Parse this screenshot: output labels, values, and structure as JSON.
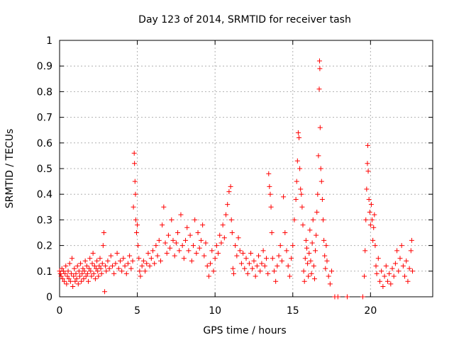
{
  "chart_data": {
    "type": "scatter",
    "title": "Day 123 of 2014, SRMTID for receiver tash",
    "xlabel": "GPS time / hours",
    "ylabel": "SRMTID / TECUs",
    "xlim": [
      0,
      24
    ],
    "ylim": [
      0,
      1
    ],
    "xticks": [
      0,
      5,
      10,
      15,
      20
    ],
    "xtick_labels": [
      "0",
      "5",
      "10",
      "15",
      "20"
    ],
    "yticks": [
      0,
      0.1,
      0.2,
      0.3,
      0.4,
      0.5,
      0.6,
      0.7,
      0.8,
      0.9,
      1
    ],
    "ytick_labels": [
      "0",
      "0.1",
      "0.2",
      "0.3",
      "0.4",
      "0.5",
      "0.6",
      "0.7",
      "0.8",
      "0.9",
      "1"
    ],
    "grid": true,
    "marker": "+",
    "color": "#ff0000",
    "series": [
      {
        "name": "SRMTID",
        "points": [
          [
            0.0,
            0.1
          ],
          [
            0.05,
            0.09
          ],
          [
            0.1,
            0.08
          ],
          [
            0.15,
            0.11
          ],
          [
            0.2,
            0.07
          ],
          [
            0.25,
            0.1
          ],
          [
            0.3,
            0.06
          ],
          [
            0.35,
            0.09
          ],
          [
            0.4,
            0.12
          ],
          [
            0.45,
            0.05
          ],
          [
            0.5,
            0.08
          ],
          [
            0.55,
            0.1
          ],
          [
            0.6,
            0.07
          ],
          [
            0.65,
            0.13
          ],
          [
            0.7,
            0.06
          ],
          [
            0.75,
            0.09
          ],
          [
            0.8,
            0.15
          ],
          [
            0.85,
            0.04
          ],
          [
            0.9,
            0.08
          ],
          [
            0.95,
            0.11
          ],
          [
            1.0,
            0.06
          ],
          [
            1.05,
            0.09
          ],
          [
            1.1,
            0.07
          ],
          [
            1.15,
            0.12
          ],
          [
            1.2,
            0.05
          ],
          [
            1.25,
            0.1
          ],
          [
            1.3,
            0.08
          ],
          [
            1.35,
            0.13
          ],
          [
            1.4,
            0.06
          ],
          [
            1.45,
            0.09
          ],
          [
            1.5,
            0.11
          ],
          [
            1.55,
            0.07
          ],
          [
            1.6,
            0.1
          ],
          [
            1.65,
            0.14
          ],
          [
            1.7,
            0.08
          ],
          [
            1.75,
            0.12
          ],
          [
            1.8,
            0.09
          ],
          [
            1.85,
            0.06
          ],
          [
            1.9,
            0.11
          ],
          [
            1.95,
            0.15
          ],
          [
            2.0,
            0.1
          ],
          [
            2.05,
            0.08
          ],
          [
            2.1,
            0.13
          ],
          [
            2.15,
            0.17
          ],
          [
            2.2,
            0.09
          ],
          [
            2.25,
            0.12
          ],
          [
            2.3,
            0.07
          ],
          [
            2.35,
            0.11
          ],
          [
            2.4,
            0.14
          ],
          [
            2.45,
            0.1
          ],
          [
            2.5,
            0.08
          ],
          [
            2.55,
            0.12
          ],
          [
            2.6,
            0.15
          ],
          [
            2.65,
            0.11
          ],
          [
            2.7,
            0.09
          ],
          [
            2.75,
            0.13
          ],
          [
            2.8,
            0.2
          ],
          [
            2.85,
            0.25
          ],
          [
            2.9,
            0.02
          ],
          [
            2.95,
            0.12
          ],
          [
            3.0,
            0.1
          ],
          [
            3.1,
            0.14
          ],
          [
            3.2,
            0.11
          ],
          [
            3.3,
            0.16
          ],
          [
            3.4,
            0.12
          ],
          [
            3.5,
            0.09
          ],
          [
            3.6,
            0.13
          ],
          [
            3.7,
            0.17
          ],
          [
            3.8,
            0.11
          ],
          [
            3.9,
            0.14
          ],
          [
            4.0,
            0.1
          ],
          [
            4.1,
            0.15
          ],
          [
            4.2,
            0.12
          ],
          [
            4.3,
            0.09
          ],
          [
            4.4,
            0.13
          ],
          [
            4.5,
            0.16
          ],
          [
            4.6,
            0.11
          ],
          [
            4.7,
            0.14
          ],
          [
            4.75,
            0.35
          ],
          [
            4.8,
            0.56
          ],
          [
            4.82,
            0.52
          ],
          [
            4.85,
            0.45
          ],
          [
            4.88,
            0.4
          ],
          [
            4.9,
            0.3
          ],
          [
            4.95,
            0.25
          ],
          [
            5.0,
            0.28
          ],
          [
            5.05,
            0.2
          ],
          [
            5.1,
            0.15
          ],
          [
            5.15,
            0.1
          ],
          [
            5.2,
            0.08
          ],
          [
            5.3,
            0.12
          ],
          [
            5.4,
            0.14
          ],
          [
            5.5,
            0.1
          ],
          [
            5.6,
            0.13
          ],
          [
            5.7,
            0.17
          ],
          [
            5.8,
            0.12
          ],
          [
            5.9,
            0.15
          ],
          [
            6.0,
            0.18
          ],
          [
            6.1,
            0.13
          ],
          [
            6.2,
            0.2
          ],
          [
            6.3,
            0.16
          ],
          [
            6.4,
            0.22
          ],
          [
            6.5,
            0.14
          ],
          [
            6.6,
            0.28
          ],
          [
            6.7,
            0.35
          ],
          [
            6.8,
            0.21
          ],
          [
            6.9,
            0.17
          ],
          [
            7.0,
            0.24
          ],
          [
            7.1,
            0.19
          ],
          [
            7.2,
            0.3
          ],
          [
            7.3,
            0.22
          ],
          [
            7.4,
            0.16
          ],
          [
            7.5,
            0.21
          ],
          [
            7.6,
            0.25
          ],
          [
            7.7,
            0.18
          ],
          [
            7.8,
            0.32
          ],
          [
            7.9,
            0.2
          ],
          [
            8.0,
            0.15
          ],
          [
            8.1,
            0.22
          ],
          [
            8.2,
            0.27
          ],
          [
            8.3,
            0.18
          ],
          [
            8.4,
            0.24
          ],
          [
            8.5,
            0.14
          ],
          [
            8.6,
            0.2
          ],
          [
            8.7,
            0.3
          ],
          [
            8.8,
            0.17
          ],
          [
            8.9,
            0.25
          ],
          [
            9.0,
            0.19
          ],
          [
            9.1,
            0.22
          ],
          [
            9.2,
            0.28
          ],
          [
            9.3,
            0.16
          ],
          [
            9.4,
            0.21
          ],
          [
            9.5,
            0.12
          ],
          [
            9.6,
            0.08
          ],
          [
            9.7,
            0.13
          ],
          [
            9.8,
            0.18
          ],
          [
            9.9,
            0.1
          ],
          [
            10.0,
            0.15
          ],
          [
            10.1,
            0.2
          ],
          [
            10.2,
            0.17
          ],
          [
            10.3,
            0.24
          ],
          [
            10.4,
            0.21
          ],
          [
            10.5,
            0.28
          ],
          [
            10.6,
            0.23
          ],
          [
            10.7,
            0.32
          ],
          [
            10.8,
            0.36
          ],
          [
            10.9,
            0.41
          ],
          [
            11.0,
            0.43
          ],
          [
            11.05,
            0.3
          ],
          [
            11.1,
            0.25
          ],
          [
            11.15,
            0.11
          ],
          [
            11.2,
            0.09
          ],
          [
            11.3,
            0.2
          ],
          [
            11.4,
            0.16
          ],
          [
            11.5,
            0.23
          ],
          [
            11.6,
            0.18
          ],
          [
            11.7,
            0.13
          ],
          [
            11.8,
            0.17
          ],
          [
            11.9,
            0.11
          ],
          [
            12.0,
            0.15
          ],
          [
            12.1,
            0.09
          ],
          [
            12.2,
            0.13
          ],
          [
            12.3,
            0.17
          ],
          [
            12.4,
            0.11
          ],
          [
            12.5,
            0.14
          ],
          [
            12.6,
            0.08
          ],
          [
            12.7,
            0.12
          ],
          [
            12.8,
            0.16
          ],
          [
            12.9,
            0.1
          ],
          [
            13.0,
            0.13
          ],
          [
            13.1,
            0.18
          ],
          [
            13.2,
            0.12
          ],
          [
            13.3,
            0.15
          ],
          [
            13.4,
            0.09
          ],
          [
            13.45,
            0.48
          ],
          [
            13.5,
            0.43
          ],
          [
            13.55,
            0.4
          ],
          [
            13.6,
            0.35
          ],
          [
            13.65,
            0.25
          ],
          [
            13.7,
            0.15
          ],
          [
            13.8,
            0.1
          ],
          [
            13.9,
            0.06
          ],
          [
            14.0,
            0.12
          ],
          [
            14.1,
            0.16
          ],
          [
            14.2,
            0.2
          ],
          [
            14.3,
            0.14
          ],
          [
            14.4,
            0.39
          ],
          [
            14.5,
            0.25
          ],
          [
            14.6,
            0.18
          ],
          [
            14.7,
            0.12
          ],
          [
            14.8,
            0.08
          ],
          [
            14.9,
            0.15
          ],
          [
            15.0,
            0.2
          ],
          [
            15.1,
            0.3
          ],
          [
            15.2,
            0.38
          ],
          [
            15.25,
            0.45
          ],
          [
            15.3,
            0.53
          ],
          [
            15.35,
            0.64
          ],
          [
            15.4,
            0.62
          ],
          [
            15.45,
            0.5
          ],
          [
            15.5,
            0.42
          ],
          [
            15.55,
            0.4
          ],
          [
            15.6,
            0.35
          ],
          [
            15.65,
            0.28
          ],
          [
            15.7,
            0.1
          ],
          [
            15.75,
            0.06
          ],
          [
            15.8,
            0.15
          ],
          [
            15.85,
            0.22
          ],
          [
            15.9,
            0.19
          ],
          [
            15.95,
            0.13
          ],
          [
            16.0,
            0.08
          ],
          [
            16.05,
            0.17
          ],
          [
            16.1,
            0.26
          ],
          [
            16.15,
            0.14
          ],
          [
            16.2,
            0.09
          ],
          [
            16.25,
            0.21
          ],
          [
            16.3,
            0.3
          ],
          [
            16.35,
            0.12
          ],
          [
            16.4,
            0.07
          ],
          [
            16.45,
            0.18
          ],
          [
            16.5,
            0.24
          ],
          [
            16.55,
            0.33
          ],
          [
            16.6,
            0.4
          ],
          [
            16.65,
            0.55
          ],
          [
            16.7,
            0.81
          ],
          [
            16.72,
            0.92
          ],
          [
            16.74,
            0.89
          ],
          [
            16.76,
            0.66
          ],
          [
            16.8,
            0.5
          ],
          [
            16.85,
            0.45
          ],
          [
            16.9,
            0.38
          ],
          [
            16.95,
            0.3
          ],
          [
            17.0,
            0.22
          ],
          [
            17.05,
            0.16
          ],
          [
            17.1,
            0.11
          ],
          [
            17.15,
            0.2
          ],
          [
            17.2,
            0.14
          ],
          [
            17.3,
            0.08
          ],
          [
            17.4,
            0.05
          ],
          [
            17.5,
            0.1
          ],
          [
            17.7,
            0.0
          ],
          [
            17.9,
            0.0
          ],
          [
            18.5,
            0.0
          ],
          [
            19.5,
            0.0
          ],
          [
            19.6,
            0.08
          ],
          [
            19.65,
            0.18
          ],
          [
            19.7,
            0.3
          ],
          [
            19.75,
            0.42
          ],
          [
            19.8,
            0.52
          ],
          [
            19.82,
            0.59
          ],
          [
            19.85,
            0.49
          ],
          [
            19.9,
            0.38
          ],
          [
            19.95,
            0.33
          ],
          [
            20.0,
            0.28
          ],
          [
            20.05,
            0.36
          ],
          [
            20.1,
            0.3
          ],
          [
            20.15,
            0.22
          ],
          [
            20.2,
            0.27
          ],
          [
            20.25,
            0.32
          ],
          [
            20.3,
            0.2
          ],
          [
            20.35,
            0.12
          ],
          [
            20.4,
            0.09
          ],
          [
            20.5,
            0.15
          ],
          [
            20.6,
            0.06
          ],
          [
            20.7,
            0.1
          ],
          [
            20.8,
            0.04
          ],
          [
            20.9,
            0.08
          ],
          [
            21.0,
            0.12
          ],
          [
            21.1,
            0.06
          ],
          [
            21.2,
            0.09
          ],
          [
            21.3,
            0.05
          ],
          [
            21.4,
            0.11
          ],
          [
            21.5,
            0.08
          ],
          [
            21.6,
            0.13
          ],
          [
            21.7,
            0.18
          ],
          [
            21.8,
            0.1
          ],
          [
            21.9,
            0.15
          ],
          [
            22.0,
            0.2
          ],
          [
            22.1,
            0.12
          ],
          [
            22.2,
            0.08
          ],
          [
            22.3,
            0.14
          ],
          [
            22.4,
            0.06
          ],
          [
            22.5,
            0.11
          ],
          [
            22.6,
            0.18
          ],
          [
            22.65,
            0.22
          ],
          [
            22.7,
            0.1
          ]
        ]
      }
    ]
  }
}
